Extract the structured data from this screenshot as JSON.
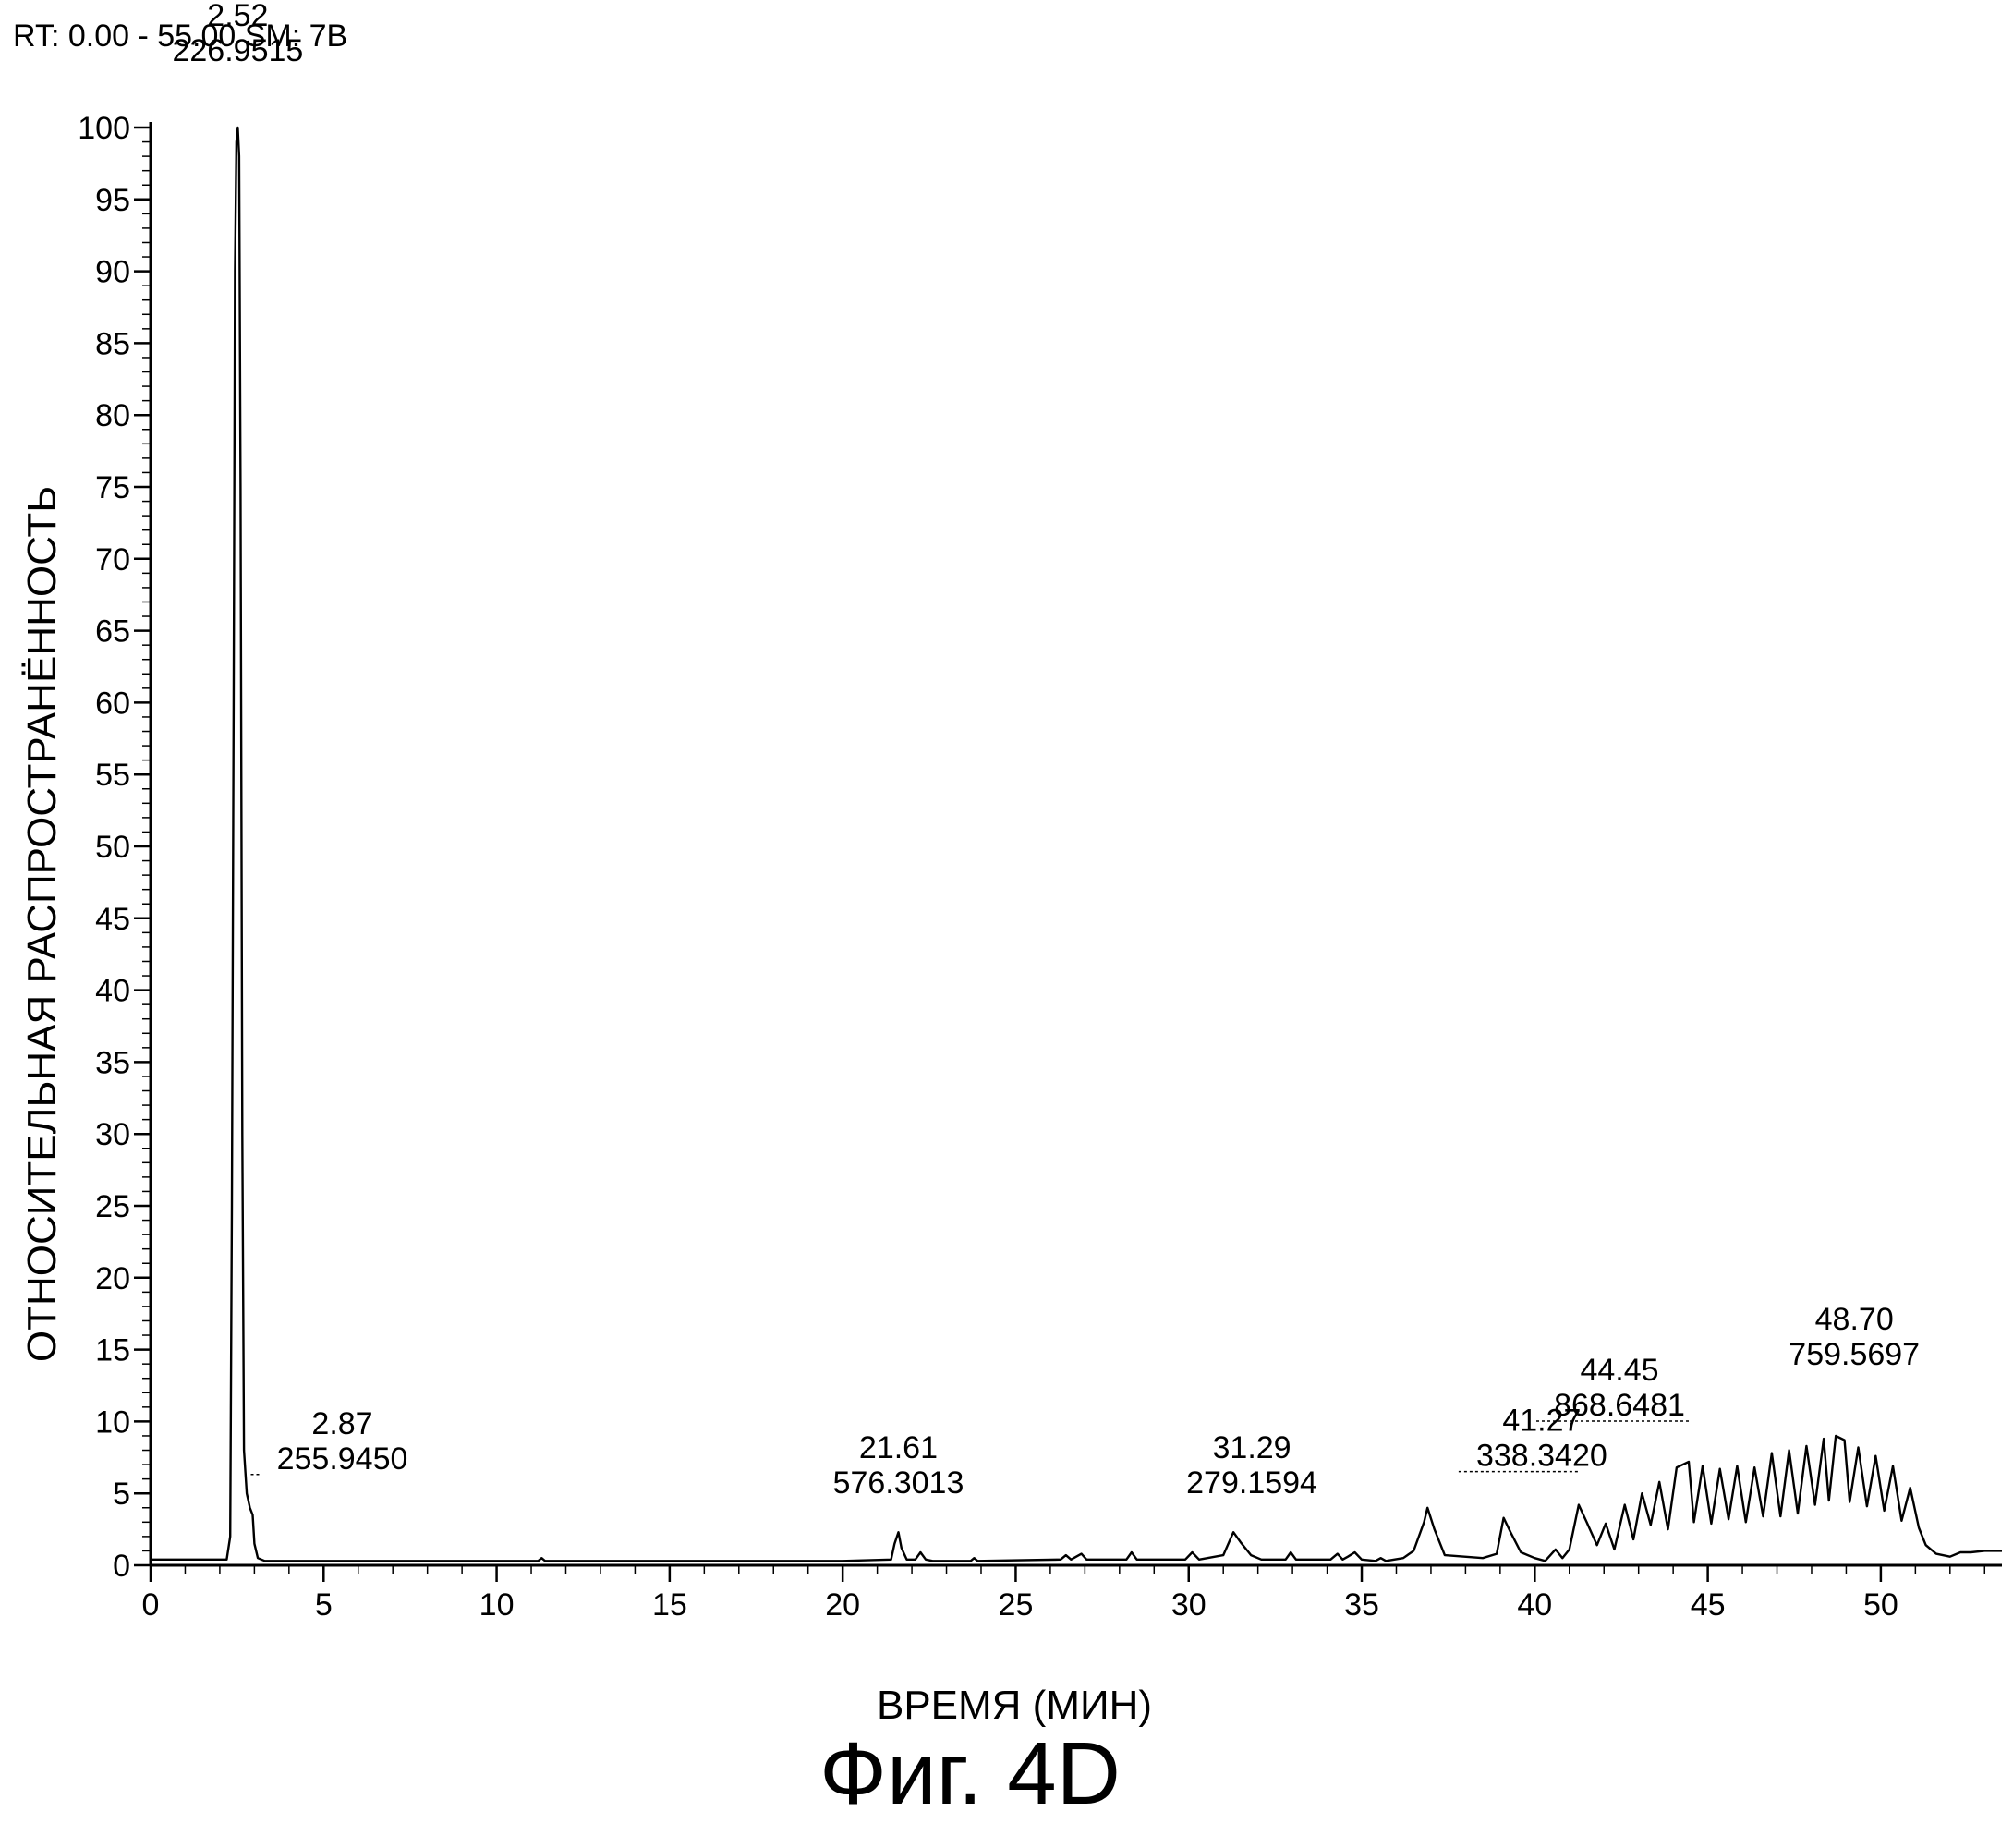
{
  "header": "RT: 0.00 - 55.00   SM: 7B",
  "figure_caption": "Фиг. 4D",
  "chart_data": {
    "type": "line",
    "xlabel": "ВРЕМЯ (МИН)",
    "ylabel": "ОТНОСИТЕЛЬНАЯ РАСПРОСТРАНЁННОСТЬ",
    "xlim": [
      0,
      53.5
    ],
    "ylim": [
      0,
      100
    ],
    "x_ticks": [
      0,
      5,
      10,
      15,
      20,
      25,
      30,
      35,
      40,
      45,
      50
    ],
    "y_ticks": [
      0,
      5,
      10,
      15,
      20,
      25,
      30,
      35,
      40,
      45,
      50,
      55,
      60,
      65,
      70,
      75,
      80,
      85,
      90,
      95,
      100
    ],
    "grid": false,
    "series": [
      {
        "x": [
          0.0,
          2.2,
          2.3,
          2.35,
          2.4,
          2.44,
          2.48,
          2.52,
          2.56,
          2.6,
          2.65,
          2.7,
          2.78,
          2.87,
          2.95,
          3.0,
          3.1,
          3.3,
          4.0,
          5.0,
          10.0,
          11.2,
          11.3,
          11.4,
          15.0,
          20.0,
          21.4,
          21.5,
          21.61,
          21.7,
          21.85,
          22.1,
          22.25,
          22.4,
          22.6,
          23.7,
          23.8,
          23.9,
          26.3,
          26.45,
          26.6,
          26.75,
          26.9,
          27.05,
          28.2,
          28.35,
          28.5,
          29.9,
          30.1,
          30.3,
          31.0,
          31.29,
          31.5,
          31.8,
          32.1,
          32.8,
          32.95,
          33.1,
          34.1,
          34.3,
          34.45,
          34.6,
          34.8,
          35.0,
          35.4,
          35.55,
          35.7,
          36.2,
          36.5,
          36.8,
          36.9,
          37.1,
          37.4,
          38.5,
          38.9,
          39.1,
          39.3,
          39.6,
          40.0,
          40.3,
          40.6,
          40.8,
          41.0,
          41.27,
          41.5,
          41.8,
          42.05,
          42.3,
          42.6,
          42.85,
          43.1,
          43.35,
          43.6,
          43.85,
          44.1,
          44.45,
          44.6,
          44.85,
          45.1,
          45.35,
          45.6,
          45.85,
          46.1,
          46.35,
          46.6,
          46.85,
          47.1,
          47.35,
          47.6,
          47.85,
          48.1,
          48.35,
          48.5,
          48.7,
          48.95,
          49.1,
          49.35,
          49.6,
          49.85,
          50.1,
          50.35,
          50.6,
          50.85,
          51.1,
          51.3,
          51.6,
          52.0,
          52.3,
          52.6,
          53.0,
          53.5
        ],
        "y": [
          0.4,
          0.4,
          2.0,
          25.0,
          60.0,
          90.0,
          99.0,
          100.0,
          98.0,
          75.0,
          30.0,
          8.0,
          5.0,
          4.0,
          3.5,
          1.5,
          0.5,
          0.3,
          0.3,
          0.3,
          0.3,
          0.3,
          0.5,
          0.3,
          0.3,
          0.3,
          0.4,
          1.5,
          2.3,
          1.2,
          0.4,
          0.4,
          0.9,
          0.4,
          0.3,
          0.3,
          0.5,
          0.3,
          0.4,
          0.7,
          0.4,
          0.6,
          0.8,
          0.4,
          0.4,
          0.9,
          0.4,
          0.4,
          0.9,
          0.4,
          0.7,
          2.3,
          1.6,
          0.7,
          0.4,
          0.4,
          0.9,
          0.4,
          0.4,
          0.8,
          0.4,
          0.6,
          0.9,
          0.4,
          0.3,
          0.5,
          0.3,
          0.5,
          1.0,
          3.0,
          4.0,
          2.5,
          0.7,
          0.5,
          0.8,
          3.3,
          2.3,
          0.9,
          0.5,
          0.3,
          1.1,
          0.5,
          1.1,
          4.2,
          3.0,
          1.4,
          2.9,
          1.1,
          4.2,
          1.8,
          5.0,
          2.8,
          5.8,
          2.5,
          6.8,
          7.2,
          3.0,
          6.9,
          2.9,
          6.7,
          3.2,
          6.9,
          3.0,
          6.8,
          3.4,
          7.8,
          3.4,
          8.0,
          3.6,
          8.3,
          4.2,
          8.8,
          4.5,
          9.0,
          8.7,
          4.4,
          8.2,
          4.1,
          7.6,
          3.8,
          6.9,
          3.1,
          5.4,
          2.6,
          1.4,
          0.8,
          0.6,
          0.9,
          0.9,
          1.0,
          1.0
        ]
      }
    ],
    "annotations": [
      {
        "x": 2.52,
        "y": 100,
        "rt": "2.52",
        "mz": "226.9515"
      },
      {
        "x": 2.87,
        "y": 4.0,
        "rt": "2.87",
        "mz": "255.9450"
      },
      {
        "x": 21.61,
        "y": 2.3,
        "rt": "21.61",
        "mz": "576.3013"
      },
      {
        "x": 31.29,
        "y": 2.3,
        "rt": "31.29",
        "mz": "279.1594"
      },
      {
        "x": 41.27,
        "y": 4.2,
        "rt": "41.27",
        "mz": "338.3420"
      },
      {
        "x": 44.45,
        "y": 7.2,
        "rt": "44.45",
        "mz": "868.6481"
      },
      {
        "x": 48.7,
        "y": 9.0,
        "rt": "48.70",
        "mz": "759.5697"
      }
    ]
  }
}
